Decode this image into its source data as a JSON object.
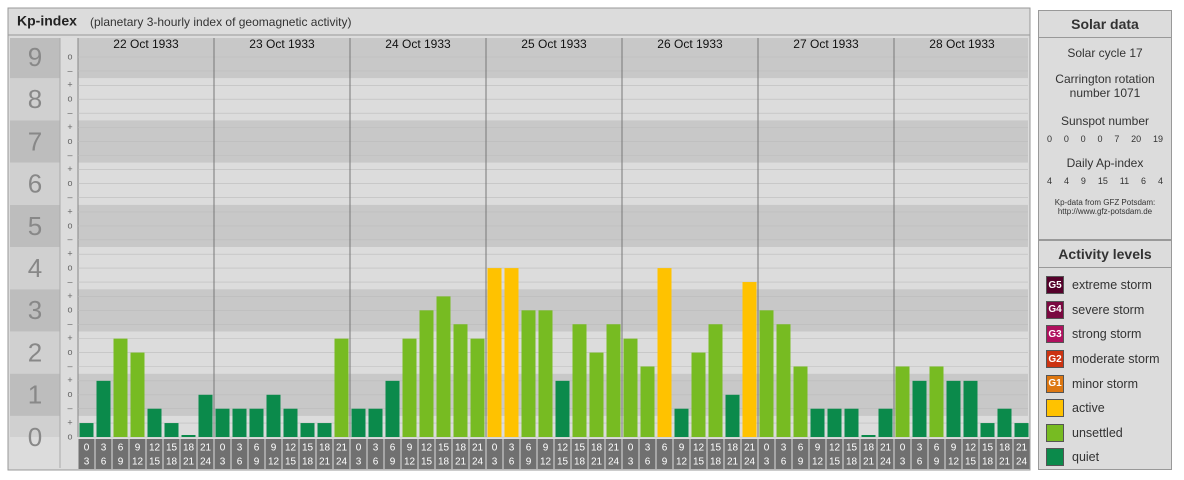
{
  "chart_data": {
    "type": "bar",
    "title": "Kp-index",
    "subtitle": "(planetary 3-hourly index of geomagnetic activity)",
    "days": [
      "22 Oct 1933",
      "23 Oct 1933",
      "24 Oct 1933",
      "25 Oct 1933",
      "26 Oct 1933",
      "27 Oct 1933",
      "28 Oct 1933"
    ],
    "time_slots": [
      [
        0,
        3
      ],
      [
        3,
        6
      ],
      [
        6,
        9
      ],
      [
        9,
        12
      ],
      [
        12,
        15
      ],
      [
        15,
        18
      ],
      [
        18,
        21
      ],
      [
        21,
        24
      ]
    ],
    "values": [
      0.33,
      1.33,
      2.33,
      2,
      0.67,
      0.33,
      0,
      1,
      0.67,
      0.67,
      0.67,
      1,
      0.67,
      0.33,
      0.33,
      2.33,
      0.67,
      0.67,
      1.33,
      2.33,
      3,
      3.33,
      2.67,
      2.33,
      4,
      4,
      3,
      3,
      1.33,
      2.67,
      2,
      2.67,
      2.33,
      1.67,
      4,
      0.67,
      2,
      2.67,
      1,
      3.67,
      3,
      2.67,
      1.67,
      0.67,
      0.67,
      0.67,
      0,
      0.67,
      1.67,
      1.33,
      1.67,
      1.33,
      1.33,
      0.33,
      0.67,
      0.33
    ],
    "colors": [
      "#0b8a4b",
      "#0b8a4b",
      "#77bb22",
      "#77bb22",
      "#0b8a4b",
      "#0b8a4b",
      "#0b8a4b",
      "#0b8a4b",
      "#0b8a4b",
      "#0b8a4b",
      "#0b8a4b",
      "#0b8a4b",
      "#0b8a4b",
      "#0b8a4b",
      "#0b8a4b",
      "#77bb22",
      "#0b8a4b",
      "#0b8a4b",
      "#0b8a4b",
      "#77bb22",
      "#77bb22",
      "#77bb22",
      "#77bb22",
      "#77bb22",
      "#ffc200",
      "#ffc200",
      "#77bb22",
      "#77bb22",
      "#0b8a4b",
      "#77bb22",
      "#77bb22",
      "#77bb22",
      "#77bb22",
      "#77bb22",
      "#ffc200",
      "#0b8a4b",
      "#77bb22",
      "#77bb22",
      "#0b8a4b",
      "#ffc200",
      "#77bb22",
      "#77bb22",
      "#77bb22",
      "#0b8a4b",
      "#0b8a4b",
      "#0b8a4b",
      "#0b8a4b",
      "#0b8a4b",
      "#77bb22",
      "#0b8a4b",
      "#77bb22",
      "#0b8a4b",
      "#0b8a4b",
      "#0b8a4b",
      "#0b8a4b",
      "#0b8a4b"
    ],
    "ylim": [
      0,
      9
    ],
    "yticks": [
      0,
      1,
      2,
      3,
      4,
      5,
      6,
      7,
      8,
      9
    ],
    "minor_yticks": [
      {
        "value": 0,
        "label": "o"
      },
      {
        "value": 0.33,
        "label": "+"
      },
      {
        "value": 0.67,
        "label": "–"
      },
      {
        "value": 1,
        "label": "o"
      },
      {
        "value": 1.33,
        "label": "+"
      },
      {
        "value": 1.67,
        "label": "–"
      },
      {
        "value": 2,
        "label": "o"
      },
      {
        "value": 2.33,
        "label": "+"
      },
      {
        "value": 2.67,
        "label": "–"
      },
      {
        "value": 3,
        "label": "o"
      },
      {
        "value": 3.33,
        "label": "+"
      },
      {
        "value": 3.67,
        "label": "–"
      },
      {
        "value": 4,
        "label": "o"
      },
      {
        "value": 4.33,
        "label": "+"
      },
      {
        "value": 4.67,
        "label": "–"
      },
      {
        "value": 5,
        "label": "o"
      },
      {
        "value": 5.33,
        "label": "+"
      },
      {
        "value": 5.67,
        "label": "–"
      },
      {
        "value": 6,
        "label": "o"
      },
      {
        "value": 6.33,
        "label": "+"
      },
      {
        "value": 6.67,
        "label": "–"
      },
      {
        "value": 7,
        "label": "o"
      },
      {
        "value": 7.33,
        "label": "+"
      },
      {
        "value": 7.67,
        "label": "–"
      },
      {
        "value": 8,
        "label": "o"
      },
      {
        "value": 8.33,
        "label": "+"
      },
      {
        "value": 8.67,
        "label": "–"
      },
      {
        "value": 9,
        "label": "o"
      }
    ],
    "grid": true
  },
  "solar_data": {
    "title": "Solar data",
    "solar_cycle": "Solar cycle 17",
    "carrington": "Carrington rotation number 1071",
    "sunspot_title": "Sunspot number",
    "sunspot_values": [
      0,
      0,
      0,
      0,
      7,
      20,
      19
    ],
    "ap_title": "Daily Ap-index",
    "ap_values": [
      4,
      4,
      9,
      15,
      11,
      6,
      4
    ],
    "source": "Kp-data from GFZ Potsdam:",
    "source_url": "http://www.gfz-potsdam.de"
  },
  "activity_levels": {
    "title": "Activity levels",
    "items": [
      {
        "code": "G5",
        "label": "extreme storm",
        "color": "#55002a"
      },
      {
        "code": "G4",
        "label": "severe storm",
        "color": "#7a0840"
      },
      {
        "code": "G3",
        "label": "strong storm",
        "color": "#b0105e"
      },
      {
        "code": "G2",
        "label": "moderate storm",
        "color": "#cc3311"
      },
      {
        "code": "G1",
        "label": "minor storm",
        "color": "#dd7711"
      },
      {
        "code": "",
        "label": "active",
        "color": "#ffc200"
      },
      {
        "code": "",
        "label": "unsettled",
        "color": "#77bb22"
      },
      {
        "code": "",
        "label": "quiet",
        "color": "#0b8a4b"
      }
    ]
  }
}
